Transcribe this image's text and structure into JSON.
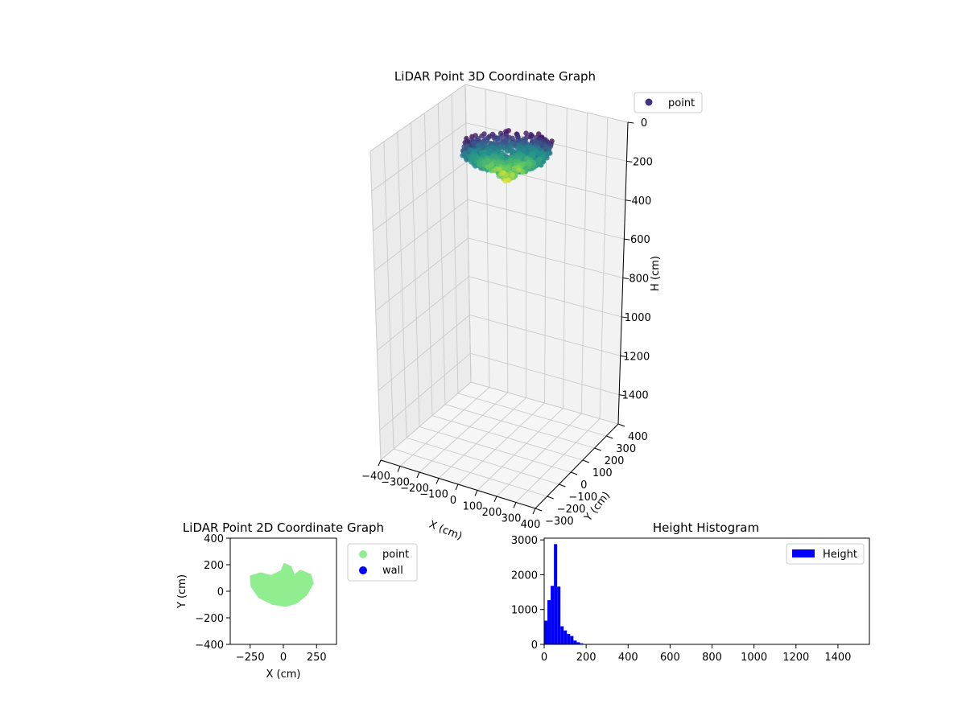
{
  "chart_data": [
    {
      "type": "scatter3d",
      "title": "LiDAR Point 3D Coordinate Graph",
      "xlabel": "X (cm)",
      "ylabel": "Y (cm)",
      "zlabel": "H (cm)",
      "xlim": [
        -400,
        400
      ],
      "ylim": [
        -300,
        400
      ],
      "zlim": [
        0,
        1550
      ],
      "z_inverted": true,
      "x_ticks": [
        "−400",
        "−300",
        "−200",
        "−100",
        "0",
        "100",
        "200",
        "300",
        "400"
      ],
      "y_ticks": [
        "−300",
        "−200",
        "−100",
        "0",
        "100",
        "200",
        "300",
        "400"
      ],
      "z_ticks": [
        "0",
        "200",
        "400",
        "600",
        "800",
        "1000",
        "1200",
        "1400"
      ],
      "colormap": "viridis",
      "legend_position": "top-right",
      "series": [
        {
          "name": "point",
          "color": "#46317e"
        }
      ],
      "cloud_extent": {
        "x": [
          -250,
          250
        ],
        "y": [
          -100,
          200
        ],
        "h": [
          0,
          200
        ]
      }
    },
    {
      "type": "scatter",
      "title": "LiDAR Point 2D Coordinate Graph",
      "xlabel": "X (cm)",
      "ylabel": "Y (cm)",
      "xlim": [
        -400,
        400
      ],
      "ylim": [
        -400,
        400
      ],
      "x_ticks": [
        "−250",
        "0",
        "250"
      ],
      "y_ticks": [
        "−400",
        "−200",
        "0",
        "200",
        "400"
      ],
      "legend_position": "outside-right",
      "series": [
        {
          "name": "point",
          "color": "#90ee90"
        },
        {
          "name": "wall",
          "color": "#0000ff"
        }
      ],
      "point_extent": {
        "x": [
          -240,
          220
        ],
        "y": [
          -100,
          200
        ]
      }
    },
    {
      "type": "bar",
      "title": "Height Histogram",
      "xlabel": "",
      "ylabel": "",
      "xlim": [
        0,
        1550
      ],
      "ylim": [
        0,
        3050
      ],
      "x_ticks": [
        "0",
        "200",
        "400",
        "600",
        "800",
        "1000",
        "1200",
        "1400"
      ],
      "y_ticks": [
        "0",
        "1000",
        "2000",
        "3000"
      ],
      "legend_position": "top-right",
      "series": [
        {
          "name": "Height",
          "color": "#0000ff"
        }
      ],
      "bin_width": 15.5,
      "bin_start": 0,
      "values": [
        680,
        1270,
        1680,
        2880,
        1660,
        520,
        400,
        300,
        240,
        110,
        60,
        30,
        10
      ]
    }
  ]
}
